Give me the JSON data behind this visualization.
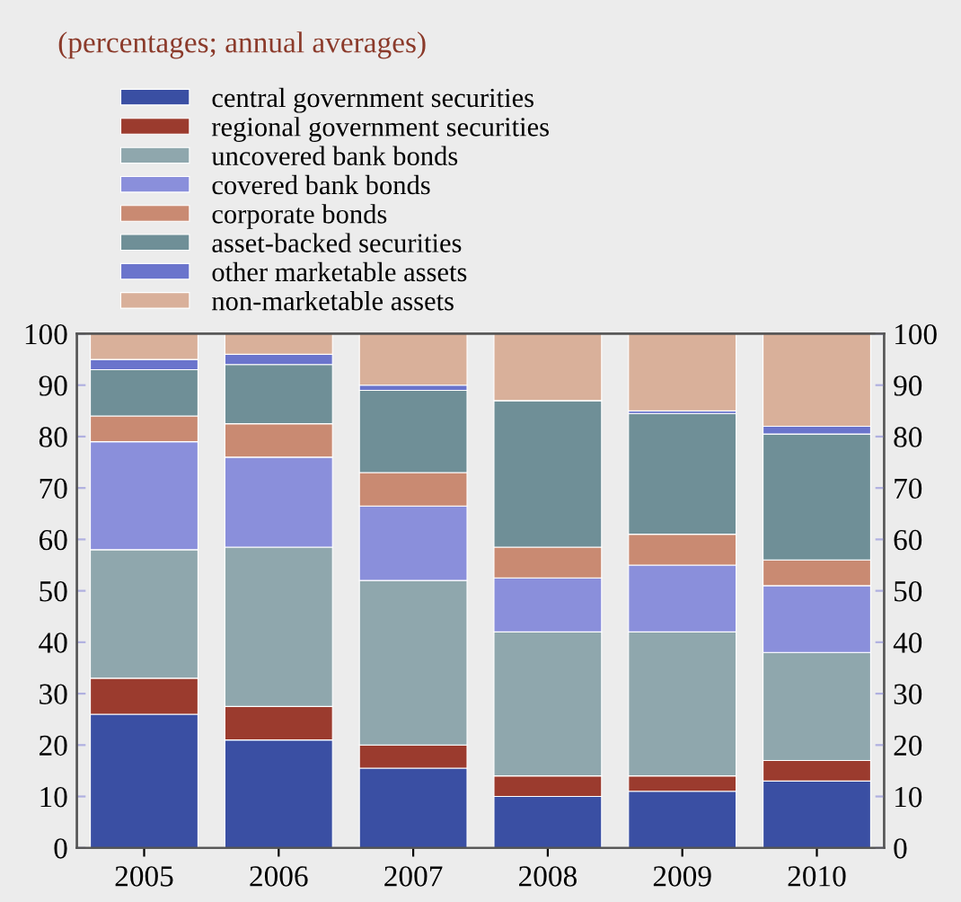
{
  "chart_data": {
    "type": "bar",
    "stacked": true,
    "subtitle": "(percentages; annual averages)",
    "categories": [
      "2005",
      "2006",
      "2007",
      "2008",
      "2009",
      "2010"
    ],
    "series": [
      {
        "name": "central government securities",
        "color": "#3a4fa3",
        "values": [
          26,
          21,
          15.5,
          10,
          11,
          13
        ]
      },
      {
        "name": "regional government securities",
        "color": "#9b3b2e",
        "values": [
          7,
          6.5,
          4.5,
          4,
          3,
          4
        ]
      },
      {
        "name": "uncovered bank bonds",
        "color": "#8fa7ad",
        "values": [
          25,
          31,
          32,
          28,
          28,
          21
        ]
      },
      {
        "name": "covered bank bonds",
        "color": "#8a8fdb",
        "values": [
          21,
          17.5,
          14.5,
          10.5,
          13,
          13
        ]
      },
      {
        "name": "corporate bonds",
        "color": "#c98a72",
        "values": [
          5,
          6.5,
          6.5,
          6,
          6,
          5
        ]
      },
      {
        "name": "asset-backed securities",
        "color": "#6f8f97",
        "values": [
          9,
          11.5,
          16,
          28.5,
          23.5,
          24.5
        ]
      },
      {
        "name": "other marketable assets",
        "color": "#6a74cc",
        "values": [
          2,
          2,
          1,
          0,
          0.5,
          1.5
        ]
      },
      {
        "name": "non-marketable assets",
        "color": "#d9b09a",
        "values": [
          5,
          4,
          10,
          13,
          15,
          18
        ]
      }
    ],
    "ylim": [
      0,
      100
    ],
    "yticks": [
      0,
      10,
      20,
      30,
      40,
      50,
      60,
      70,
      80,
      90,
      100
    ],
    "y2lim": [
      0,
      100
    ],
    "y2ticks": [
      0,
      10,
      20,
      30,
      40,
      50,
      60,
      70,
      80,
      90,
      100
    ],
    "legend": "top",
    "grid": false
  }
}
